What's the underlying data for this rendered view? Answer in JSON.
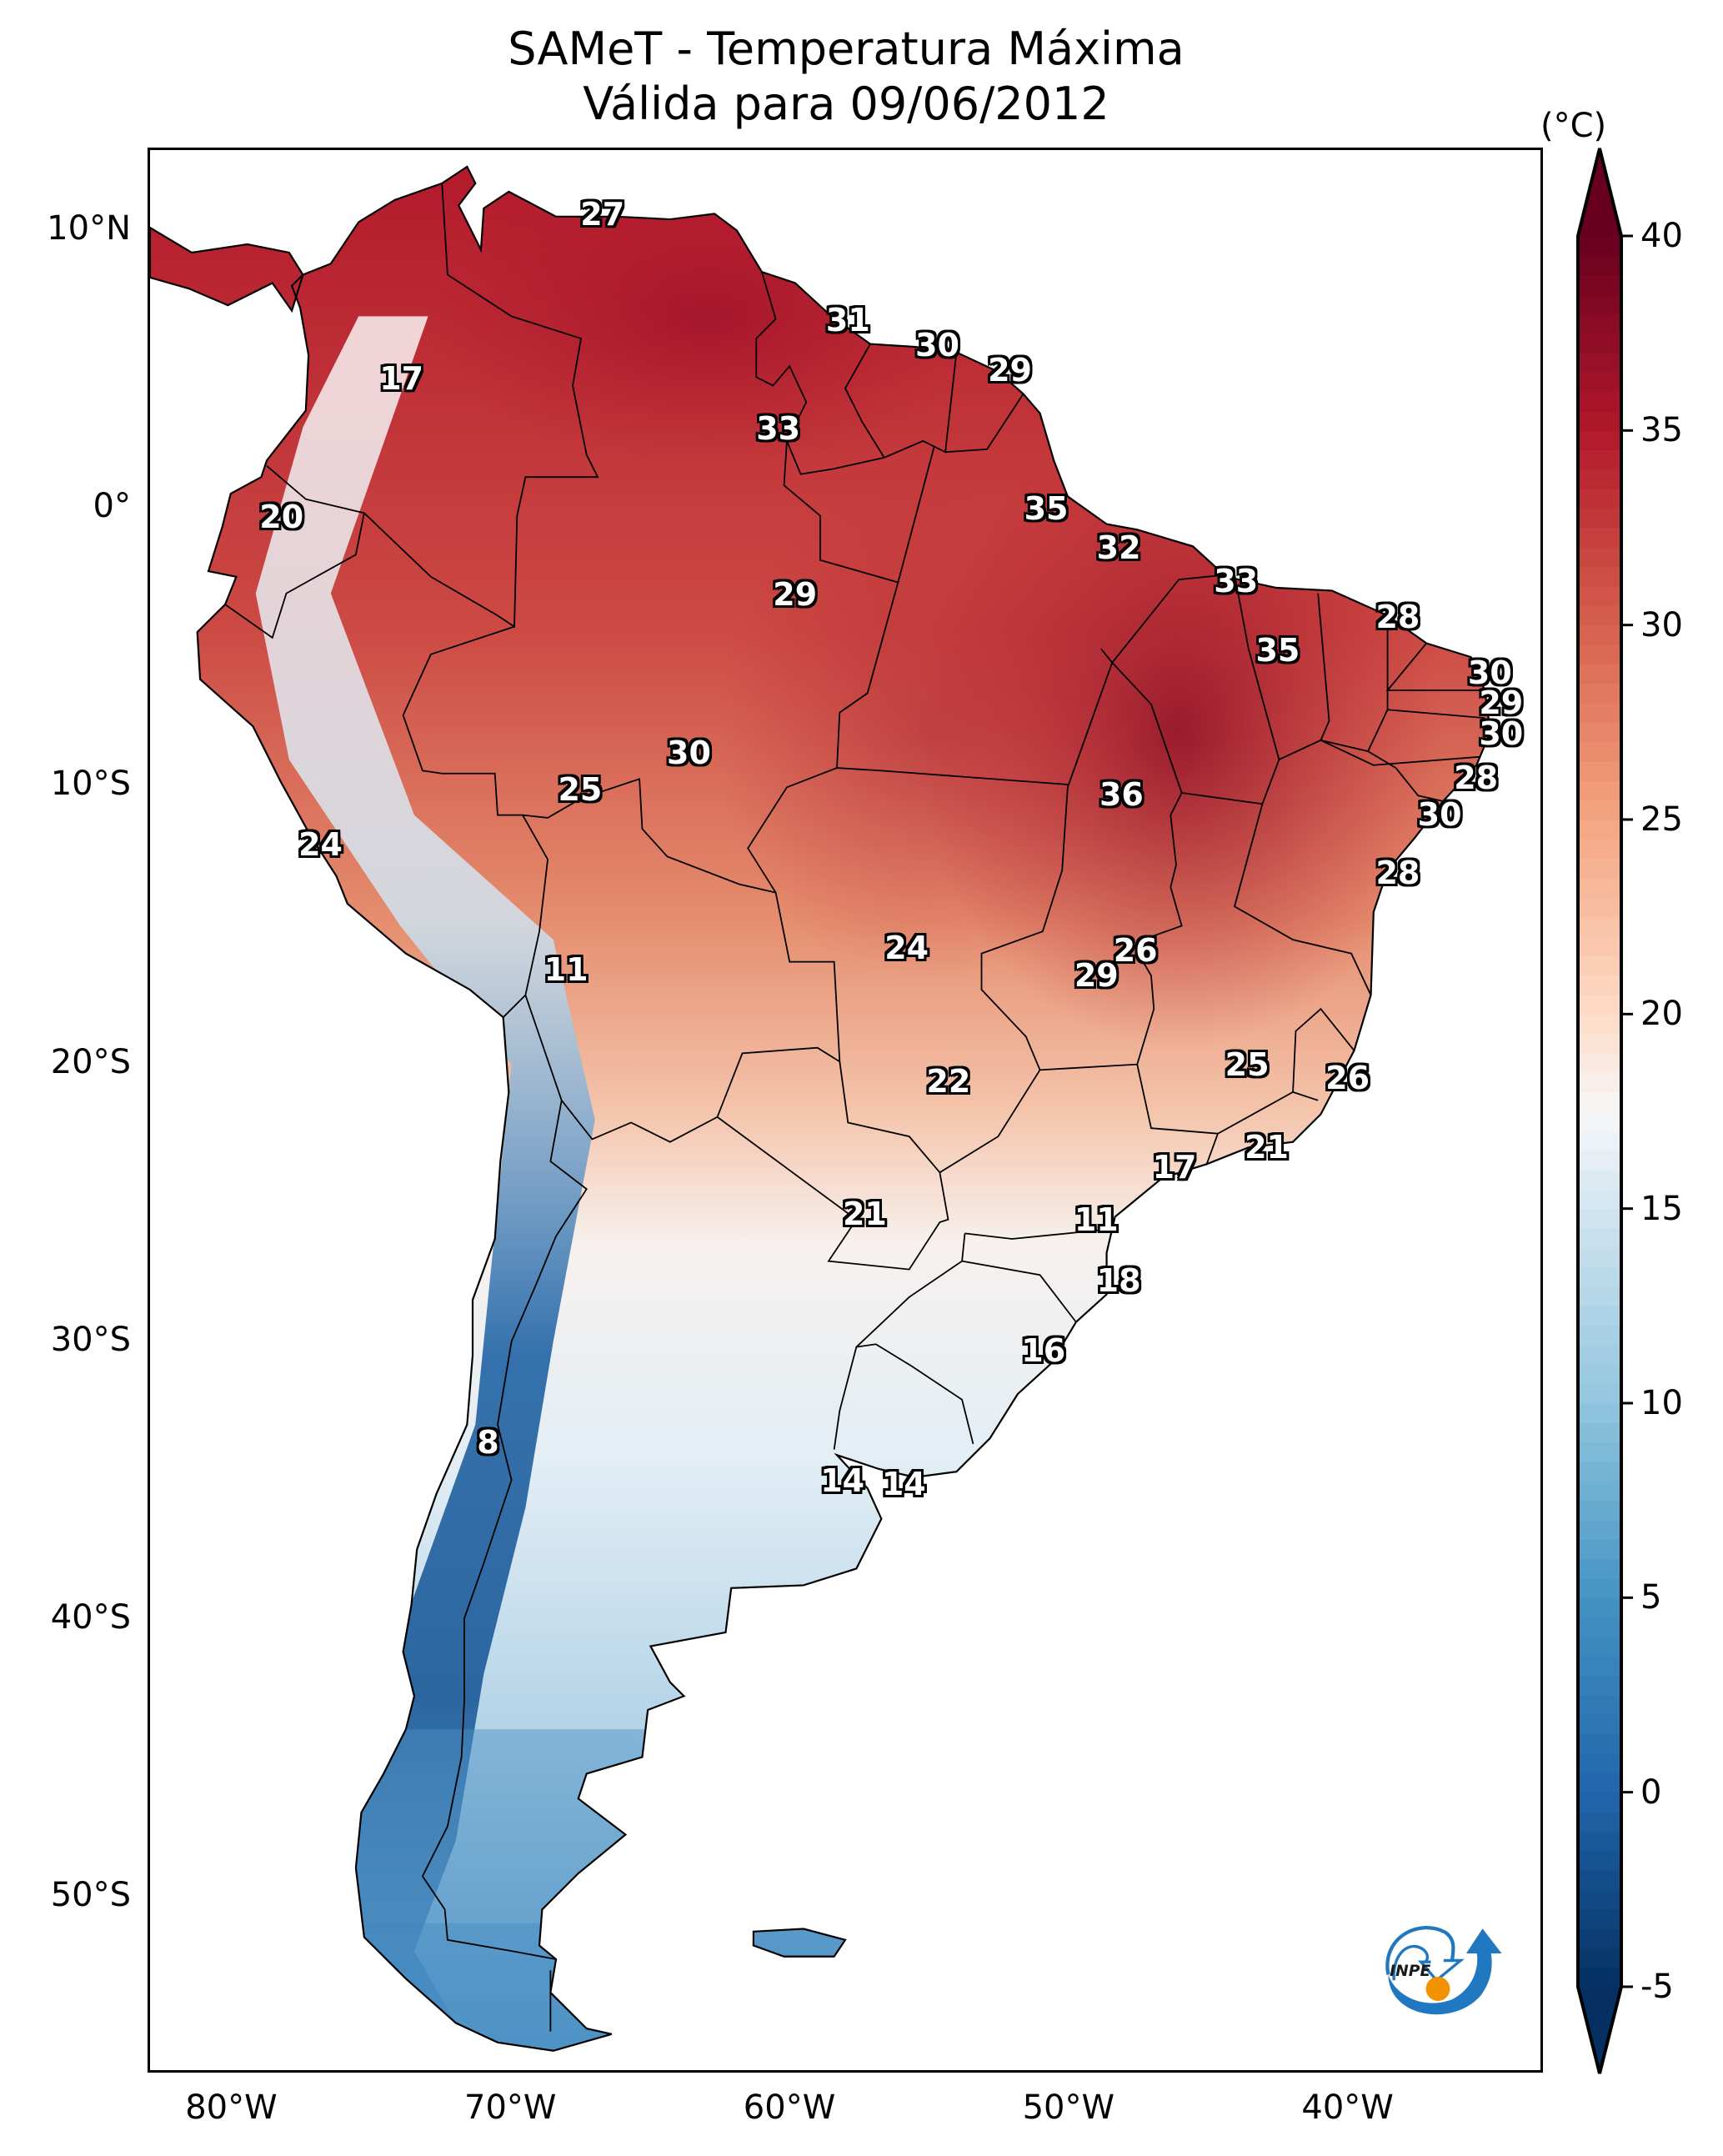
{
  "header": {
    "title_line1": "SAMeT - Temperatura Máxima",
    "title_line2": "Válida para 09/06/2012"
  },
  "chart_data": {
    "type": "heatmap",
    "title": "SAMeT - Temperatura Máxima",
    "subtitle": "Válida para 09/06/2012",
    "xlabel": "",
    "ylabel": "",
    "xlim": [
      -83,
      -33
    ],
    "ylim": [
      -56.3,
      13
    ],
    "x_ticks": [
      {
        "value": -80,
        "label": "80°W"
      },
      {
        "value": -70,
        "label": "70°W"
      },
      {
        "value": -60,
        "label": "60°W"
      },
      {
        "value": -50,
        "label": "50°W"
      },
      {
        "value": -40,
        "label": "40°W"
      }
    ],
    "y_ticks": [
      {
        "value": 10,
        "label": "10°N"
      },
      {
        "value": 0,
        "label": "0°"
      },
      {
        "value": -10,
        "label": "10°S"
      },
      {
        "value": -20,
        "label": "20°S"
      },
      {
        "value": -30,
        "label": "30°S"
      },
      {
        "value": -40,
        "label": "40°S"
      },
      {
        "value": -50,
        "label": "50°S"
      }
    ],
    "colorbar": {
      "unit": "(°C)",
      "colormap": "RdBu_r",
      "range": [
        -5,
        40
      ],
      "extend": "both",
      "ticks": [
        {
          "value": 40,
          "label": "40"
        },
        {
          "value": 35,
          "label": "35"
        },
        {
          "value": 30,
          "label": "30"
        },
        {
          "value": 25,
          "label": "25"
        },
        {
          "value": 20,
          "label": "20"
        },
        {
          "value": 15,
          "label": "15"
        },
        {
          "value": 10,
          "label": "10"
        },
        {
          "value": 5,
          "label": "5"
        },
        {
          "value": 0,
          "label": "0"
        },
        {
          "value": -5,
          "label": "-5"
        }
      ]
    },
    "station_labels": [
      {
        "lon": -66.7,
        "lat": 10.6,
        "value": 27
      },
      {
        "lon": -73.9,
        "lat": 4.7,
        "value": 17
      },
      {
        "lon": -57.9,
        "lat": 6.8,
        "value": 31
      },
      {
        "lon": -54.7,
        "lat": 5.9,
        "value": 30
      },
      {
        "lon": -52.1,
        "lat": 5.0,
        "value": 29
      },
      {
        "lon": -60.4,
        "lat": 2.9,
        "value": 33
      },
      {
        "lon": -78.2,
        "lat": -0.3,
        "value": 20
      },
      {
        "lon": -50.8,
        "lat": 0.0,
        "value": 35
      },
      {
        "lon": -48.2,
        "lat": -1.4,
        "value": 32
      },
      {
        "lon": -59.8,
        "lat": -3.1,
        "value": 29
      },
      {
        "lon": -44.0,
        "lat": -2.6,
        "value": 33
      },
      {
        "lon": -38.2,
        "lat": -3.9,
        "value": 28
      },
      {
        "lon": -42.5,
        "lat": -5.1,
        "value": 35
      },
      {
        "lon": -34.9,
        "lat": -5.9,
        "value": 30
      },
      {
        "lon": -34.5,
        "lat": -7.0,
        "value": 29
      },
      {
        "lon": -34.5,
        "lat": -8.1,
        "value": 30
      },
      {
        "lon": -63.6,
        "lat": -8.8,
        "value": 30
      },
      {
        "lon": -48.1,
        "lat": -10.3,
        "value": 36
      },
      {
        "lon": -67.5,
        "lat": -10.1,
        "value": 25
      },
      {
        "lon": -35.4,
        "lat": -9.7,
        "value": 28
      },
      {
        "lon": -76.8,
        "lat": -12.1,
        "value": 24
      },
      {
        "lon": -36.7,
        "lat": -11.0,
        "value": 30
      },
      {
        "lon": -38.2,
        "lat": -13.1,
        "value": 28
      },
      {
        "lon": -68.0,
        "lat": -16.6,
        "value": 11
      },
      {
        "lon": -55.8,
        "lat": -15.8,
        "value": 24
      },
      {
        "lon": -47.6,
        "lat": -15.9,
        "value": 26
      },
      {
        "lon": -49.0,
        "lat": -16.8,
        "value": 29
      },
      {
        "lon": -54.3,
        "lat": -20.6,
        "value": 22
      },
      {
        "lon": -43.6,
        "lat": -20.0,
        "value": 25
      },
      {
        "lon": -40.0,
        "lat": -20.5,
        "value": 26
      },
      {
        "lon": -46.2,
        "lat": -23.7,
        "value": 17
      },
      {
        "lon": -42.9,
        "lat": -23.0,
        "value": 21
      },
      {
        "lon": -57.3,
        "lat": -25.4,
        "value": 21
      },
      {
        "lon": -49.0,
        "lat": -25.6,
        "value": 11
      },
      {
        "lon": -48.2,
        "lat": -27.8,
        "value": 18
      },
      {
        "lon": -50.9,
        "lat": -30.3,
        "value": 16
      },
      {
        "lon": -70.8,
        "lat": -33.6,
        "value": 8
      },
      {
        "lon": -58.1,
        "lat": -35.0,
        "value": 14
      },
      {
        "lon": -55.9,
        "lat": -35.1,
        "value": 14
      }
    ],
    "grid": false,
    "legend": "colorbar-right"
  },
  "logo": {
    "text": "INPE",
    "colors": {
      "blue": "#1f78c0",
      "orange": "#f39200"
    }
  }
}
